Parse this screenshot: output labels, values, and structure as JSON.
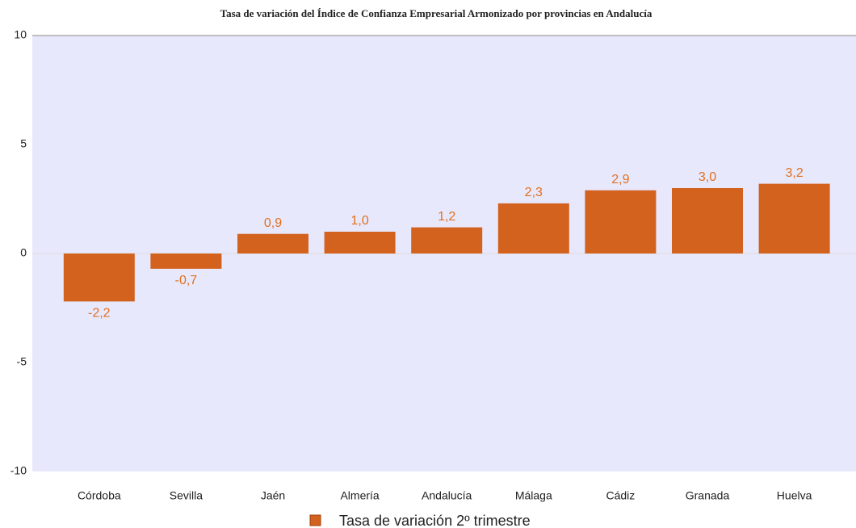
{
  "chart_data": {
    "type": "bar",
    "title": "Tasa de variación del Índice de Confianza Empresarial Armonizado por provincias en Andalucía",
    "categories": [
      "Córdoba",
      "Sevilla",
      "Jaén",
      "Almería",
      "Andalucía",
      "Málaga",
      "Cádiz",
      "Granada",
      "Huelva"
    ],
    "series": [
      {
        "name": "Tasa de variación 2º trimestre",
        "color": "#d2621e",
        "values": [
          -2.2,
          -0.7,
          0.9,
          1.0,
          1.2,
          2.3,
          2.9,
          3.0,
          3.2
        ],
        "value_labels": [
          "-2,2",
          "-0,7",
          "0,9",
          "1,0",
          "1,2",
          "2,3",
          "2,9",
          "3,0",
          "3,2"
        ]
      }
    ],
    "ylim": [
      -10,
      10
    ],
    "yticks": [
      10,
      5,
      0,
      -5,
      -10
    ],
    "grid": false
  }
}
